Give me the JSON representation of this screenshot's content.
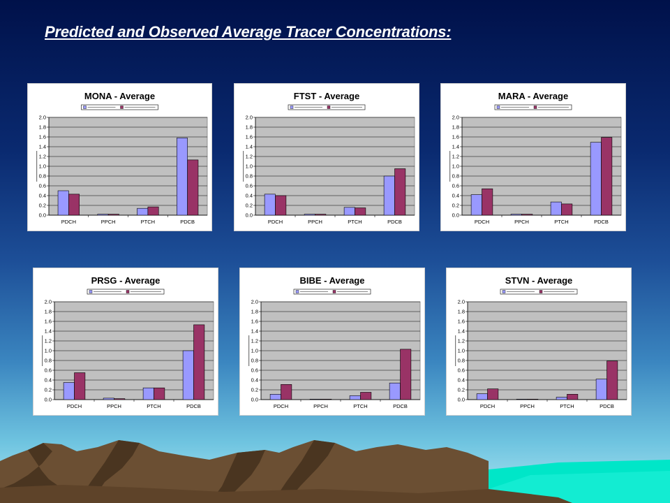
{
  "slide": {
    "title": "Predicted and Observed Average Tracer Concentrations:"
  },
  "colors": {
    "series_1": "#9999ff",
    "series_2": "#993366",
    "plot_area": "#c0c0c0",
    "grid": "#000000",
    "mountains": "#6b4f33",
    "water": "#00e0c8"
  },
  "chart_data": [
    {
      "type": "bar",
      "title": "MONA - Average",
      "categories": [
        "PDCH",
        "PPCH",
        "PTCH",
        "PDCB"
      ],
      "series": [
        {
          "values": [
            0.5,
            0.02,
            0.14,
            1.58
          ]
        },
        {
          "values": [
            0.43,
            0.02,
            0.17,
            1.13
          ]
        }
      ],
      "ylim": [
        0,
        2.0
      ],
      "yticks": [
        "0.0",
        "0.2",
        "0.4",
        "0.6",
        "0.8",
        "1.0",
        "1.2",
        "1.4",
        "1.6",
        "1.8",
        "2.0"
      ],
      "grid": true,
      "legend": "top"
    },
    {
      "type": "bar",
      "title": "FTST - Average",
      "categories": [
        "PDCH",
        "PPCH",
        "PTCH",
        "PDCB"
      ],
      "series": [
        {
          "values": [
            0.43,
            0.02,
            0.16,
            0.8
          ]
        },
        {
          "values": [
            0.4,
            0.02,
            0.15,
            0.95
          ]
        }
      ],
      "ylim": [
        0,
        2.0
      ],
      "yticks": [
        "0.0",
        "0.2",
        "0.4",
        "0.6",
        "0.8",
        "1.0",
        "1.2",
        "1.4",
        "1.6",
        "1.8",
        "2.0"
      ],
      "grid": true,
      "legend": "top"
    },
    {
      "type": "bar",
      "title": "MARA - Average",
      "categories": [
        "PDCH",
        "PPCH",
        "PTCH",
        "PDCB"
      ],
      "series": [
        {
          "values": [
            0.42,
            0.02,
            0.27,
            1.49
          ]
        },
        {
          "values": [
            0.54,
            0.02,
            0.23,
            1.59
          ]
        }
      ],
      "ylim": [
        0,
        2.0
      ],
      "yticks": [
        "0.0",
        "0.2",
        "0.4",
        "0.6",
        "0.8",
        "1.0",
        "1.2",
        "1.4",
        "1.6",
        "1.8",
        "2.0"
      ],
      "grid": true,
      "legend": "top"
    },
    {
      "type": "bar",
      "title": "PRSG - Average",
      "categories": [
        "PDCH",
        "PPCH",
        "PTCH",
        "PDCB"
      ],
      "series": [
        {
          "values": [
            0.35,
            0.03,
            0.24,
            1.0
          ]
        },
        {
          "values": [
            0.55,
            0.02,
            0.24,
            1.53
          ]
        }
      ],
      "ylim": [
        0,
        2.0
      ],
      "yticks": [
        "0.0",
        "0.2",
        "0.4",
        "0.6",
        "0.8",
        "1.0",
        "1.2",
        "1.4",
        "1.6",
        "1.8",
        "2.0"
      ],
      "grid": true,
      "legend": "top"
    },
    {
      "type": "bar",
      "title": "BIBE - Average",
      "categories": [
        "PDCH",
        "PPCH",
        "PTCH",
        "PDCB"
      ],
      "series": [
        {
          "values": [
            0.11,
            0.01,
            0.08,
            0.34
          ]
        },
        {
          "values": [
            0.31,
            0.01,
            0.15,
            1.03
          ]
        }
      ],
      "ylim": [
        0,
        2.0
      ],
      "yticks": [
        "0.0",
        "0.2",
        "0.4",
        "0.6",
        "0.8",
        "1.0",
        "1.2",
        "1.4",
        "1.6",
        "1.8",
        "2.0"
      ],
      "grid": true,
      "legend": "top"
    },
    {
      "type": "bar",
      "title": "STVN - Average",
      "categories": [
        "PDCH",
        "PPCH",
        "PTCH",
        "PDCB"
      ],
      "series": [
        {
          "values": [
            0.12,
            0.01,
            0.05,
            0.42
          ]
        },
        {
          "values": [
            0.22,
            0.01,
            0.11,
            0.79
          ]
        }
      ],
      "ylim": [
        0,
        2.0
      ],
      "yticks": [
        "0.0",
        "0.2",
        "0.4",
        "0.6",
        "0.8",
        "1.0",
        "1.2",
        "1.4",
        "1.6",
        "1.8",
        "2.0"
      ],
      "grid": true,
      "legend": "top"
    }
  ]
}
